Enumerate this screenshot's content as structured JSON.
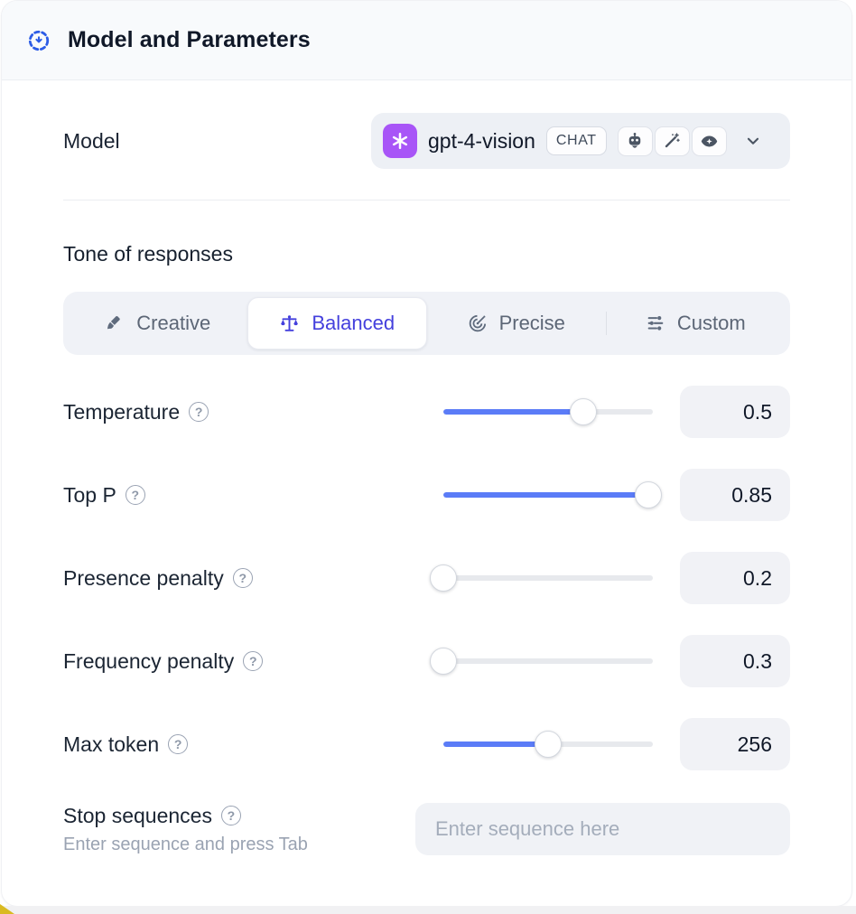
{
  "header": {
    "title": "Model and Parameters",
    "icon": "drag-handle-circle-icon"
  },
  "model": {
    "label": "Model",
    "selected_model": "gpt-4-vision",
    "provider_icon": "openai-logo",
    "type_badge": "CHAT",
    "capability_icons": [
      "robot-icon",
      "magic-wand-icon",
      "vision-eye-icon"
    ],
    "dropdown_icon": "chevron-down-icon"
  },
  "tone": {
    "heading": "Tone of responses",
    "tabs": [
      {
        "label": "Creative",
        "icon": "paintbrush-icon",
        "selected": false
      },
      {
        "label": "Balanced",
        "icon": "balance-scale-icon",
        "selected": true
      },
      {
        "label": "Precise",
        "icon": "target-icon",
        "selected": false
      },
      {
        "label": "Custom",
        "icon": "sliders-icon",
        "selected": false
      }
    ]
  },
  "parameters": [
    {
      "label": "Temperature",
      "value": "0.5",
      "fill_percent": 67
    },
    {
      "label": "Top P",
      "value": "0.85",
      "fill_percent": 98
    },
    {
      "label": "Presence penalty",
      "value": "0.2",
      "fill_percent": 0
    },
    {
      "label": "Frequency penalty",
      "value": "0.3",
      "fill_percent": 0
    },
    {
      "label": "Max token",
      "value": "256",
      "fill_percent": 50
    }
  ],
  "stop_sequences": {
    "label": "Stop sequences",
    "helper": "Enter sequence and press Tab",
    "placeholder": "Enter sequence here"
  },
  "help_glyph": "?",
  "colors": {
    "accent_slider_blue": "#5b7cf7",
    "selected_tab_indigo": "#4440dd",
    "header_bg": "#f8fafc",
    "field_bg": "#f1f2f6",
    "provider_badge_purple": "#a855f7",
    "header_icon_blue": "#2c5ce6",
    "corner_accent_yellow": "#d9ba22"
  }
}
